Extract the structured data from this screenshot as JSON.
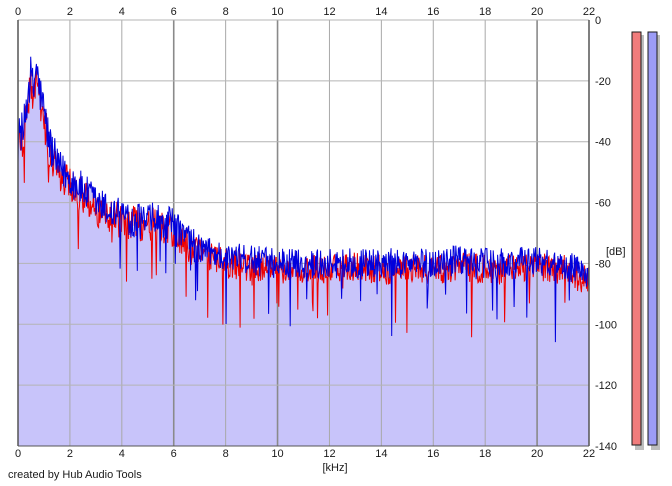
{
  "credit": "created by Hub Audio Tools",
  "chart_data": {
    "type": "line",
    "title": "",
    "xlabel": "[kHz]",
    "ylabel": "[dB]",
    "xlim": [
      0,
      22
    ],
    "ylim": [
      -140,
      0
    ],
    "x_ticks": [
      0,
      2,
      4,
      6,
      8,
      10,
      12,
      14,
      16,
      18,
      20,
      22
    ],
    "y_ticks": [
      0,
      -20,
      -40,
      -60,
      -80,
      -100,
      -120,
      -140
    ],
    "y_tick_labels": [
      "0",
      "-20",
      "-40",
      "-60",
      "-80",
      "-100",
      "-120",
      "-140"
    ],
    "grid": true,
    "x_scale": "linear",
    "series": [
      {
        "color": "#0000dd",
        "fill": "#c8c4fa",
        "x": [
          0,
          0.1,
          0.2,
          0.3,
          0.4,
          0.5,
          0.6,
          0.7,
          0.8,
          1.0,
          1.2,
          1.5,
          2.0,
          2.5,
          3.0,
          3.5,
          4.0,
          4.5,
          5.0,
          5.5,
          6.0,
          6.5,
          7.0,
          8.0,
          9.0,
          10.0,
          11.0,
          12.0,
          13.0,
          14.0,
          15.0,
          16.0,
          17.0,
          18.0,
          19.0,
          20.0,
          21.0,
          22.0
        ],
        "values": [
          -40,
          -36,
          -38,
          -30,
          -22,
          -18,
          -24,
          -14,
          -22,
          -30,
          -40,
          -48,
          -52,
          -56,
          -60,
          -63,
          -64,
          -66,
          -66,
          -66,
          -68,
          -72,
          -75,
          -78,
          -79,
          -80,
          -80,
          -80,
          -80,
          -80,
          -80,
          -80,
          -79,
          -80,
          -80,
          -79,
          -80,
          -84
        ]
      },
      {
        "color": "#ee0000",
        "x": [
          0,
          0.1,
          0.2,
          0.3,
          0.4,
          0.5,
          0.6,
          0.7,
          0.8,
          1.0,
          1.2,
          1.5,
          2.0,
          2.5,
          3.0,
          3.5,
          4.0,
          4.5,
          5.0,
          5.5,
          6.0,
          6.5,
          7.0,
          8.0,
          9.0,
          10.0,
          11.0,
          12.0,
          13.0,
          14.0,
          15.0,
          16.0,
          17.0,
          18.0,
          19.0,
          20.0,
          21.0,
          22.0
        ],
        "values": [
          -40,
          -38,
          -40,
          -32,
          -25,
          -22,
          -27,
          -20,
          -25,
          -33,
          -42,
          -50,
          -54,
          -58,
          -62,
          -64,
          -66,
          -67,
          -67,
          -68,
          -70,
          -74,
          -77,
          -80,
          -81,
          -82,
          -82,
          -82,
          -81,
          -82,
          -82,
          -82,
          -81,
          -82,
          -82,
          -81,
          -82,
          -86
        ]
      }
    ],
    "level_meters": [
      {
        "color": "#f07c7c"
      },
      {
        "color": "#9c9cf6"
      }
    ]
  }
}
